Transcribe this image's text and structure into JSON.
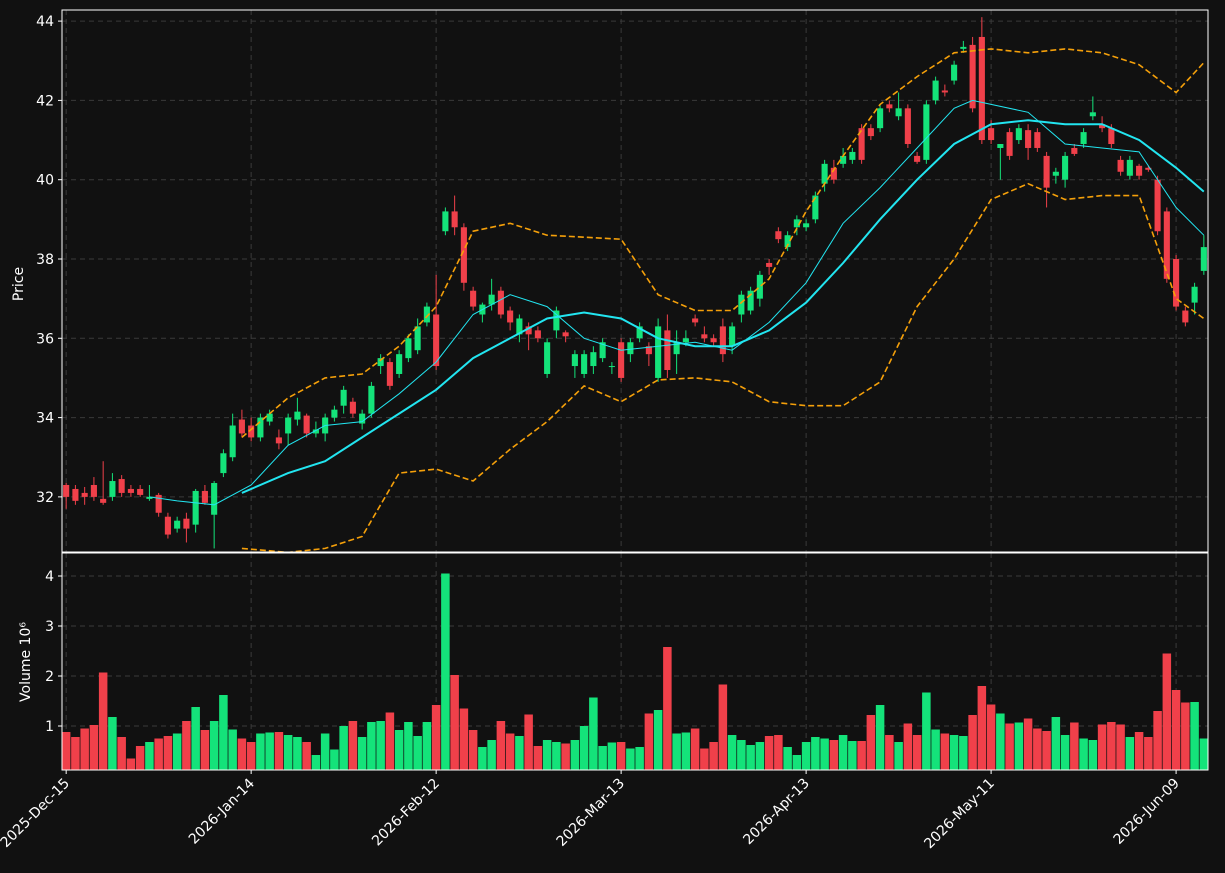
{
  "chart_data": {
    "type": "candlestick",
    "ylabel": "Price",
    "volume_ylabel": "Volume  10⁶",
    "up_color": "#14e37a",
    "down_color": "#f0404a",
    "xlim": [
      -0.45,
      123.45
    ],
    "xticks": [
      {
        "value": 0,
        "label": "2025-Dec-15"
      },
      {
        "value": 20,
        "label": "2026-Jan-14"
      },
      {
        "value": 40,
        "label": "2026-Feb-12"
      },
      {
        "value": 60,
        "label": "2026-Mar-13"
      },
      {
        "value": 80,
        "label": "2026-Apr-13"
      },
      {
        "value": 100,
        "label": "2026-May-11"
      },
      {
        "value": 120,
        "label": "2026-Jun-09"
      }
    ],
    "ylim": [
      30.61,
      44.28
    ],
    "yticks": [
      32,
      34,
      36,
      38,
      40,
      42,
      44
    ],
    "volume_ylim": [
      0.12,
      4.46
    ],
    "volume_yticks": [
      1,
      2,
      3,
      4
    ],
    "grid": true,
    "open": [
      32.3,
      32.2,
      32.1,
      32.3,
      31.95,
      32.0,
      32.45,
      32.2,
      32.2,
      31.95,
      32.05,
      31.5,
      31.2,
      31.45,
      31.3,
      32.15,
      31.55,
      32.6,
      33.0,
      33.95,
      33.8,
      33.5,
      33.9,
      33.5,
      33.6,
      33.95,
      34.05,
      33.6,
      33.6,
      34.0,
      34.3,
      34.4,
      33.85,
      34.1,
      35.3,
      35.4,
      35.1,
      35.5,
      35.7,
      36.4,
      36.6,
      38.7,
      39.2,
      38.8,
      37.2,
      36.6,
      36.85,
      37.2,
      36.7,
      36.1,
      36.3,
      36.2,
      35.1,
      36.2,
      36.15,
      35.3,
      35.1,
      35.3,
      35.5,
      35.3,
      35.9,
      35.6,
      36.0,
      35.8,
      35.0,
      36.2,
      35.6,
      35.9,
      36.5,
      36.1,
      36.0,
      36.3,
      35.8,
      36.6,
      36.7,
      37.0,
      37.9,
      38.7,
      38.3,
      38.8,
      38.8,
      39.0,
      39.9,
      40.3,
      40.4,
      40.5,
      41.3,
      41.3,
      41.3,
      41.9,
      41.6,
      41.8,
      40.6,
      40.5,
      42.0,
      42.25,
      42.5,
      43.3,
      43.4,
      43.6,
      41.3,
      40.8,
      41.2,
      41.0,
      41.25,
      41.2,
      40.6,
      40.1,
      40.0,
      40.8,
      40.9,
      41.6,
      41.4,
      41.3,
      40.5,
      40.1,
      40.35,
      40.3,
      40.0,
      39.2,
      38.0,
      36.7,
      36.9,
      37.7
    ],
    "high": [
      32.35,
      32.3,
      32.25,
      32.5,
      32.9,
      32.6,
      32.55,
      32.3,
      32.3,
      32.3,
      32.1,
      31.6,
      31.5,
      31.6,
      32.2,
      32.3,
      32.4,
      33.2,
      34.1,
      34.2,
      34.0,
      34.1,
      34.2,
      33.7,
      34.1,
      34.5,
      34.1,
      33.9,
      34.1,
      34.3,
      34.8,
      34.5,
      34.2,
      34.9,
      35.6,
      35.5,
      35.7,
      36.1,
      36.5,
      36.9,
      37.6,
      39.3,
      39.6,
      38.9,
      37.3,
      36.9,
      37.5,
      37.3,
      36.8,
      36.6,
      36.4,
      36.3,
      36.0,
      36.8,
      36.2,
      35.7,
      35.7,
      35.8,
      36.0,
      35.4,
      36.0,
      36.0,
      36.4,
      35.9,
      36.5,
      36.6,
      36.2,
      36.2,
      36.6,
      36.3,
      36.1,
      36.5,
      36.4,
      37.2,
      37.3,
      37.7,
      38.0,
      38.8,
      38.7,
      39.1,
      39.0,
      39.7,
      40.5,
      40.5,
      40.8,
      40.8,
      41.4,
      41.4,
      41.9,
      42.0,
      42.2,
      41.9,
      40.7,
      42.0,
      42.6,
      42.4,
      43.0,
      43.5,
      43.6,
      44.1,
      41.5,
      40.9,
      41.3,
      41.4,
      41.4,
      41.3,
      40.7,
      40.3,
      40.7,
      40.9,
      41.3,
      42.1,
      41.6,
      41.4,
      40.6,
      40.6,
      40.4,
      40.35,
      40.1,
      39.3,
      38.1,
      36.8,
      37.4,
      38.6
    ],
    "low": [
      31.7,
      31.8,
      31.8,
      31.9,
      31.8,
      31.9,
      32.0,
      32.0,
      32.0,
      31.9,
      31.5,
      30.95,
      31.1,
      30.85,
      31.1,
      31.8,
      30.7,
      32.5,
      32.9,
      33.5,
      33.4,
      33.4,
      33.8,
      33.2,
      33.3,
      33.8,
      33.5,
      33.5,
      33.4,
      33.9,
      34.1,
      34.0,
      33.7,
      34.0,
      35.1,
      34.7,
      35.0,
      35.4,
      35.6,
      36.3,
      35.2,
      38.6,
      38.6,
      37.2,
      36.7,
      36.4,
      36.7,
      36.5,
      36.2,
      35.9,
      35.7,
      35.9,
      35.0,
      36.0,
      35.9,
      35.0,
      35.0,
      35.1,
      35.4,
      35.1,
      34.9,
      35.4,
      35.9,
      35.3,
      34.9,
      35.0,
      35.1,
      35.8,
      36.3,
      35.9,
      35.8,
      35.4,
      35.6,
      36.4,
      36.6,
      36.8,
      37.6,
      38.4,
      38.2,
      38.6,
      38.7,
      38.9,
      39.7,
      39.9,
      40.3,
      40.4,
      40.4,
      41.0,
      41.2,
      41.7,
      41.5,
      40.8,
      40.4,
      40.4,
      41.9,
      42.1,
      42.4,
      43.2,
      41.7,
      40.9,
      40.9,
      40.0,
      40.5,
      40.9,
      40.5,
      40.7,
      39.3,
      39.9,
      39.8,
      40.6,
      40.8,
      41.5,
      41.2,
      40.8,
      40.1,
      40.0,
      40.0,
      40.2,
      38.6,
      37.4,
      36.7,
      36.3,
      36.6,
      37.6
    ],
    "close": [
      32.0,
      31.9,
      32.0,
      32.0,
      31.85,
      32.4,
      32.1,
      32.1,
      32.05,
      32.0,
      31.6,
      31.05,
      31.4,
      31.2,
      32.15,
      31.85,
      32.35,
      33.1,
      33.8,
      33.6,
      33.5,
      34.0,
      34.1,
      33.35,
      34.0,
      34.15,
      33.6,
      33.7,
      34.0,
      34.2,
      34.7,
      34.1,
      34.1,
      34.8,
      35.5,
      34.8,
      35.6,
      36.0,
      36.3,
      36.8,
      35.3,
      39.2,
      38.8,
      37.4,
      36.8,
      36.85,
      37.1,
      36.6,
      36.4,
      36.5,
      36.1,
      36.0,
      35.9,
      36.7,
      36.05,
      35.6,
      35.6,
      35.65,
      35.9,
      35.3,
      35.0,
      35.9,
      36.3,
      35.6,
      36.3,
      35.2,
      35.9,
      36.0,
      36.4,
      36.0,
      35.9,
      35.6,
      36.3,
      37.1,
      37.2,
      37.6,
      37.8,
      38.5,
      38.6,
      39.0,
      38.9,
      39.6,
      40.4,
      40.0,
      40.6,
      40.7,
      40.5,
      41.1,
      41.8,
      41.8,
      41.8,
      40.9,
      40.45,
      41.9,
      42.5,
      42.2,
      42.9,
      43.35,
      41.8,
      41.0,
      41.0,
      40.9,
      40.6,
      41.3,
      40.8,
      40.8,
      39.8,
      40.2,
      40.6,
      40.65,
      41.2,
      41.7,
      41.3,
      40.9,
      40.2,
      40.5,
      40.1,
      40.25,
      38.7,
      37.5,
      36.8,
      36.4,
      37.3,
      38.3
    ],
    "volume": [
      0.88,
      0.78,
      0.95,
      1.02,
      2.07,
      1.18,
      0.78,
      0.35,
      0.6,
      0.68,
      0.75,
      0.8,
      0.85,
      1.1,
      1.38,
      0.92,
      1.1,
      1.62,
      0.93,
      0.75,
      0.68,
      0.85,
      0.87,
      0.88,
      0.82,
      0.78,
      0.68,
      0.42,
      0.85,
      0.53,
      1.0,
      1.1,
      0.78,
      1.08,
      1.1,
      1.27,
      0.92,
      1.08,
      0.8,
      1.08,
      1.42,
      4.05,
      2.02,
      1.35,
      0.92,
      0.58,
      0.72,
      1.1,
      0.85,
      0.8,
      1.23,
      0.6,
      0.72,
      0.68,
      0.65,
      0.72,
      1.0,
      1.57,
      0.6,
      0.67,
      0.68,
      0.55,
      0.58,
      1.25,
      1.32,
      2.58,
      0.85,
      0.87,
      0.95,
      0.55,
      0.68,
      1.83,
      0.82,
      0.72,
      0.62,
      0.68,
      0.8,
      0.82,
      0.58,
      0.42,
      0.68,
      0.78,
      0.75,
      0.72,
      0.82,
      0.7,
      0.7,
      1.22,
      1.42,
      0.82,
      0.68,
      1.05,
      0.82,
      1.67,
      0.93,
      0.85,
      0.82,
      0.8,
      1.22,
      1.8,
      1.43,
      1.25,
      1.05,
      1.07,
      1.15,
      0.95,
      0.9,
      1.18,
      0.82,
      1.07,
      0.75,
      0.72,
      1.03,
      1.08,
      1.03,
      0.78,
      0.88,
      0.78,
      1.3,
      2.45,
      1.72,
      1.47,
      1.48,
      0.75
    ],
    "lines": [
      {
        "color": "#22e5f0",
        "width": 1,
        "dash": false,
        "x": [
          9,
          12,
          16,
          20,
          24,
          28,
          32,
          36,
          40,
          44,
          48,
          52,
          56,
          60,
          64,
          68,
          72,
          76,
          80,
          84,
          88,
          92,
          96,
          98,
          100,
          104,
          108,
          112,
          116,
          120,
          123
        ],
        "values": [
          32.0,
          31.9,
          31.8,
          32.3,
          33.3,
          33.8,
          33.9,
          34.6,
          35.4,
          36.6,
          37.1,
          36.8,
          36.0,
          35.7,
          35.8,
          35.9,
          35.7,
          36.4,
          37.4,
          38.9,
          39.8,
          40.8,
          41.8,
          42.0,
          41.9,
          41.7,
          40.9,
          40.8,
          40.7,
          39.3,
          38.6
        ]
      },
      {
        "color": "#22e5f0",
        "width": 2,
        "dash": false,
        "x": [
          19,
          24,
          28,
          32,
          36,
          40,
          44,
          48,
          52,
          56,
          60,
          64,
          68,
          72,
          76,
          80,
          84,
          88,
          92,
          96,
          100,
          104,
          108,
          112,
          116,
          120,
          123
        ],
        "values": [
          32.1,
          32.6,
          32.9,
          33.5,
          34.1,
          34.7,
          35.5,
          36.0,
          36.5,
          36.65,
          36.5,
          36.0,
          35.8,
          35.8,
          36.2,
          36.9,
          37.9,
          39.0,
          40.0,
          40.9,
          41.4,
          41.5,
          41.4,
          41.4,
          41.0,
          40.3,
          39.7
        ]
      },
      {
        "color": "#f5a00a",
        "width": 1.6,
        "dash": true,
        "x": [
          19,
          24,
          28,
          32,
          36,
          40,
          44,
          48,
          52,
          56,
          60,
          64,
          68,
          72,
          76,
          80,
          84,
          88,
          92,
          96,
          100,
          104,
          108,
          112,
          116,
          120,
          123
        ],
        "values": [
          33.5,
          34.5,
          35.0,
          35.1,
          35.8,
          36.8,
          38.7,
          38.9,
          38.6,
          38.55,
          38.5,
          37.1,
          36.7,
          36.7,
          37.5,
          39.2,
          40.6,
          41.9,
          42.6,
          43.2,
          43.3,
          43.2,
          43.3,
          43.2,
          42.9,
          42.2,
          42.95
        ]
      },
      {
        "color": "#f5a00a",
        "width": 1.6,
        "dash": true,
        "x": [
          19,
          24,
          28,
          32,
          36,
          40,
          44,
          48,
          52,
          56,
          60,
          64,
          68,
          72,
          76,
          80,
          84,
          88,
          92,
          96,
          100,
          104,
          108,
          112,
          116,
          120,
          123
        ],
        "values": [
          30.7,
          30.6,
          30.7,
          31.0,
          32.6,
          32.7,
          32.4,
          33.2,
          33.9,
          34.8,
          34.4,
          34.95,
          35.0,
          34.9,
          34.4,
          34.3,
          34.3,
          34.9,
          36.8,
          38.0,
          39.5,
          39.9,
          39.5,
          39.6,
          39.6,
          37.0,
          36.5
        ]
      }
    ]
  }
}
